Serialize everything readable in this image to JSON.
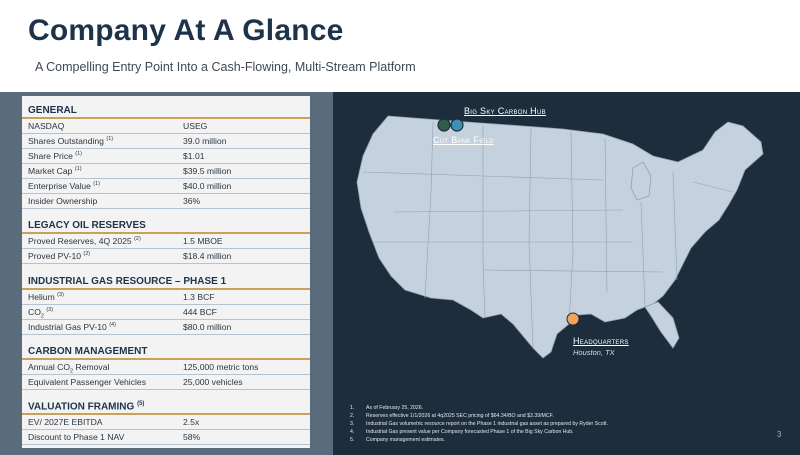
{
  "header": {
    "title": "Company At A Glance",
    "subtitle": "A Compelling Entry Point Into a Cash-Flowing, Multi-Stream Platform"
  },
  "sections": {
    "general": {
      "title": "GENERAL",
      "rows": [
        {
          "label": "NASDAQ",
          "sup": "",
          "value": "USEG"
        },
        {
          "label": "Shares Outstanding",
          "sup": "(1)",
          "value": "39.0 million"
        },
        {
          "label": "Share Price",
          "sup": "(1)",
          "value": "$1.01"
        },
        {
          "label": "Market Cap",
          "sup": "(1)",
          "value": "$39.5 million"
        },
        {
          "label": "Enterprise Value",
          "sup": "(1)",
          "value": "$40.0 million"
        },
        {
          "label": "Insider Ownership",
          "sup": "",
          "value": "36%"
        }
      ]
    },
    "legacy": {
      "title": "LEGACY OIL RESERVES",
      "rows": [
        {
          "label": "Proved Reserves, 4Q 2025",
          "sup": "(2)",
          "value": "1.5 MBOE"
        },
        {
          "label": "Proved PV-10",
          "sup": "(2)",
          "value": "$18.4 million"
        }
      ]
    },
    "industrial": {
      "title": "INDUSTRIAL GAS RESOURCE – PHASE 1",
      "rows": [
        {
          "label": "Helium",
          "sup": "(3)",
          "value": "1.3 BCF"
        },
        {
          "label": "CO",
          "sub": "2",
          "sup": "(3)",
          "value": "444 BCF"
        },
        {
          "label": "Industrial Gas PV-10",
          "sup": "(4)",
          "value": "$80.0 million"
        }
      ]
    },
    "carbon": {
      "title": "CARBON MANAGEMENT",
      "rows": [
        {
          "label": "Annual CO",
          "sub": "2",
          "label_tail": " Removal",
          "value": "125,000 metric tons"
        },
        {
          "label": "Equivalent Passenger Vehicles",
          "value": "25,000 vehicles"
        }
      ]
    },
    "valuation": {
      "title": "VALUATION FRAMING",
      "title_sup": "(5)",
      "rows": [
        {
          "label": "EV/ 2027E EBITDA",
          "value": "2.5x"
        },
        {
          "label": "Discount to Phase 1 NAV",
          "value": "58%"
        }
      ]
    }
  },
  "map": {
    "labels": {
      "big_sky": "Big Sky Carbon Hub",
      "cut_bank": "Cut Bank Field",
      "hq": "Headquarters",
      "hq_city": "Houston, TX"
    },
    "colors": {
      "land": "#c5d2de",
      "ocean": "#1d2d3c",
      "cut_bank_marker": "#2e5e4a",
      "big_sky_marker": "#3d8fb5",
      "hq_marker": "#f2a25c"
    }
  },
  "footnotes": [
    {
      "n": "1.",
      "text": "As of February 25, 2026."
    },
    {
      "n": "2.",
      "text": "Reserves effective 1/1/2026 at 4q2025 SEC pricing of $64.34/BO and $3.39/MCF."
    },
    {
      "n": "3.",
      "text": "Industrial Gas volumetric resource report on the Phase 1 industrial gas asset as prepared by Ryder Scott."
    },
    {
      "n": "4.",
      "text": "Industrial Gas present value per Company forecasted Phase 1 of the Big Sky Carbon Hub."
    },
    {
      "n": "5.",
      "text": "Company management estimates."
    }
  ],
  "page_number": "3"
}
